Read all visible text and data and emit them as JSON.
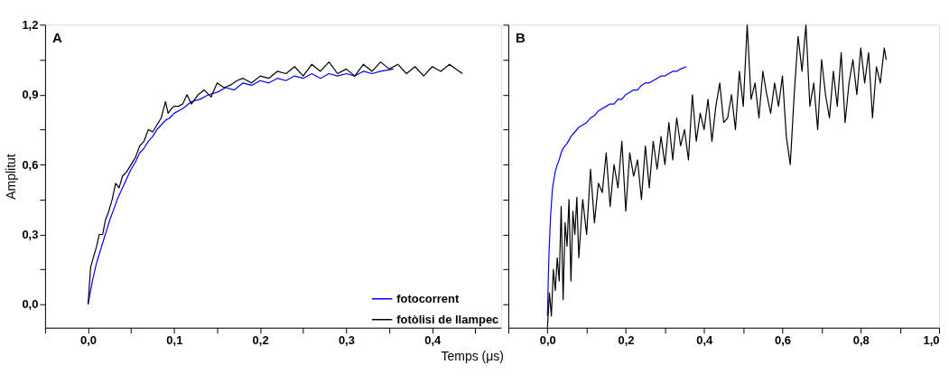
{
  "chart_data": [
    {
      "type": "line",
      "ylabel": "Amplitut",
      "xlabel": "Temps (μs)",
      "annotations": [
        "A"
      ],
      "legend": "bottom right",
      "xlim": [
        -0.05,
        0.48
      ],
      "ylim": [
        -0.1,
        1.2
      ],
      "xticks": [
        {
          "value": -0.05,
          "label": null
        },
        {
          "value": 0,
          "label": "0,0"
        },
        {
          "value": 0.05,
          "label": null
        },
        {
          "value": 0.1,
          "label": "0,1"
        },
        {
          "value": 0.15,
          "label": null
        },
        {
          "value": 0.2,
          "label": "0,2"
        },
        {
          "value": 0.25,
          "label": null
        },
        {
          "value": 0.3,
          "label": "0,3"
        },
        {
          "value": 0.35,
          "label": null
        },
        {
          "value": 0.4,
          "label": "0,4"
        },
        {
          "value": 0.45,
          "label": null
        }
      ],
      "yticks": [
        {
          "value": 0,
          "label": "0,0"
        },
        {
          "value": 0.15,
          "label": null
        },
        {
          "value": 0.3,
          "label": "0,3"
        },
        {
          "value": 0.45,
          "label": null
        },
        {
          "value": 0.6,
          "label": "0,6"
        },
        {
          "value": 0.75,
          "label": null
        },
        {
          "value": 0.9,
          "label": "0,9"
        },
        {
          "value": 1.05,
          "label": null
        },
        {
          "value": 1.2,
          "label": "1,2"
        }
      ],
      "series": [
        {
          "name": "fotocorrent",
          "color": "#0000ff",
          "x": [
            0,
            0.005,
            0.01,
            0.015,
            0.02,
            0.025,
            0.03,
            0.035,
            0.04,
            0.045,
            0.05,
            0.055,
            0.06,
            0.065,
            0.07,
            0.075,
            0.08,
            0.085,
            0.09,
            0.095,
            0.1,
            0.11,
            0.12,
            0.13,
            0.14,
            0.15,
            0.16,
            0.17,
            0.18,
            0.19,
            0.2,
            0.21,
            0.22,
            0.23,
            0.24,
            0.25,
            0.26,
            0.27,
            0.28,
            0.29,
            0.3,
            0.31,
            0.32,
            0.33,
            0.34,
            0.355
          ],
          "values": [
            0,
            0.1,
            0.18,
            0.24,
            0.3,
            0.36,
            0.41,
            0.46,
            0.5,
            0.54,
            0.58,
            0.61,
            0.65,
            0.67,
            0.7,
            0.72,
            0.75,
            0.77,
            0.79,
            0.8,
            0.82,
            0.84,
            0.87,
            0.88,
            0.9,
            0.91,
            0.93,
            0.92,
            0.95,
            0.94,
            0.96,
            0.95,
            0.97,
            0.96,
            0.98,
            0.97,
            0.99,
            0.97,
            0.99,
            0.98,
            0.99,
            0.98,
            1.0,
            0.99,
            1.0,
            1.01
          ]
        },
        {
          "name": "fotòlisi de llampec",
          "color": "#000000",
          "x": [
            0,
            0.003,
            0.006,
            0.01,
            0.013,
            0.017,
            0.02,
            0.024,
            0.028,
            0.032,
            0.036,
            0.04,
            0.045,
            0.05,
            0.055,
            0.06,
            0.065,
            0.07,
            0.075,
            0.08,
            0.085,
            0.09,
            0.093,
            0.097,
            0.1,
            0.105,
            0.11,
            0.115,
            0.12,
            0.128,
            0.135,
            0.143,
            0.15,
            0.158,
            0.165,
            0.173,
            0.18,
            0.19,
            0.2,
            0.21,
            0.22,
            0.23,
            0.24,
            0.25,
            0.26,
            0.27,
            0.28,
            0.29,
            0.3,
            0.31,
            0.32,
            0.33,
            0.34,
            0.35,
            0.36,
            0.37,
            0.38,
            0.39,
            0.4,
            0.41,
            0.42,
            0.435
          ],
          "values": [
            0,
            0.16,
            0.2,
            0.25,
            0.3,
            0.3,
            0.36,
            0.4,
            0.45,
            0.52,
            0.5,
            0.55,
            0.57,
            0.6,
            0.63,
            0.68,
            0.7,
            0.75,
            0.74,
            0.77,
            0.8,
            0.87,
            0.82,
            0.84,
            0.85,
            0.85,
            0.86,
            0.9,
            0.86,
            0.9,
            0.92,
            0.89,
            0.95,
            0.93,
            0.94,
            0.96,
            0.97,
            0.95,
            0.98,
            0.97,
            1.0,
            0.99,
            1.02,
            0.98,
            1.03,
            1.0,
            1.04,
            0.99,
            1.01,
            0.98,
            1.03,
            1.0,
            1.04,
            1.01,
            1.03,
            0.99,
            1.02,
            0.98,
            1.02,
            1.0,
            1.03,
            0.99
          ]
        }
      ]
    },
    {
      "type": "line",
      "annotations": [
        "B"
      ],
      "tick_labels": "x",
      "xlim": [
        -0.1,
        1.0
      ],
      "ylim": [
        -0.1,
        1.2
      ],
      "xticks": [
        {
          "value": -0.1,
          "label": null
        },
        {
          "value": 0,
          "label": "0,0"
        },
        {
          "value": 0.1,
          "label": null
        },
        {
          "value": 0.2,
          "label": "0,2"
        },
        {
          "value": 0.3,
          "label": null
        },
        {
          "value": 0.4,
          "label": "0,4"
        },
        {
          "value": 0.5,
          "label": null
        },
        {
          "value": 0.6,
          "label": "0,6"
        },
        {
          "value": 0.7,
          "label": null
        },
        {
          "value": 0.8,
          "label": "0,8"
        },
        {
          "value": 0.9,
          "label": null
        },
        {
          "value": 1.0,
          "label": "1,0"
        }
      ],
      "yticks": [
        {
          "value": 0,
          "label": null
        },
        {
          "value": 0.15,
          "label": null
        },
        {
          "value": 0.3,
          "label": null
        },
        {
          "value": 0.45,
          "label": null
        },
        {
          "value": 0.6,
          "label": null
        },
        {
          "value": 0.75,
          "label": null
        },
        {
          "value": 0.9,
          "label": null
        },
        {
          "value": 1.05,
          "label": null
        },
        {
          "value": 1.2,
          "label": null
        }
      ],
      "series": [
        {
          "color": "#0000ff",
          "x": [
            0,
            0.002,
            0.004,
            0.006,
            0.008,
            0.01,
            0.013,
            0.016,
            0.02,
            0.025,
            0.03,
            0.035,
            0.04,
            0.05,
            0.06,
            0.07,
            0.08,
            0.09,
            0.1,
            0.11,
            0.12,
            0.13,
            0.14,
            0.15,
            0.16,
            0.17,
            0.18,
            0.19,
            0.2,
            0.21,
            0.22,
            0.23,
            0.24,
            0.25,
            0.26,
            0.27,
            0.28,
            0.29,
            0.3,
            0.31,
            0.32,
            0.33,
            0.34,
            0.355
          ],
          "values": [
            -0.05,
            0.1,
            0.22,
            0.3,
            0.38,
            0.43,
            0.5,
            0.53,
            0.57,
            0.6,
            0.62,
            0.65,
            0.67,
            0.69,
            0.72,
            0.74,
            0.76,
            0.77,
            0.78,
            0.8,
            0.81,
            0.83,
            0.84,
            0.85,
            0.86,
            0.86,
            0.88,
            0.88,
            0.9,
            0.91,
            0.92,
            0.92,
            0.94,
            0.95,
            0.95,
            0.96,
            0.97,
            0.98,
            0.98,
            0.99,
            1.0,
            1.0,
            1.01,
            1.02
          ]
        },
        {
          "color": "#000000",
          "x": [
            0.0,
            0.005,
            0.01,
            0.015,
            0.02,
            0.025,
            0.03,
            0.035,
            0.04,
            0.045,
            0.05,
            0.055,
            0.06,
            0.065,
            0.07,
            0.075,
            0.08,
            0.09,
            0.1,
            0.11,
            0.12,
            0.13,
            0.14,
            0.15,
            0.16,
            0.17,
            0.18,
            0.19,
            0.2,
            0.21,
            0.22,
            0.23,
            0.24,
            0.25,
            0.26,
            0.27,
            0.28,
            0.29,
            0.3,
            0.31,
            0.32,
            0.33,
            0.34,
            0.35,
            0.36,
            0.37,
            0.38,
            0.39,
            0.4,
            0.41,
            0.42,
            0.43,
            0.44,
            0.45,
            0.46,
            0.47,
            0.48,
            0.49,
            0.5,
            0.51,
            0.52,
            0.53,
            0.54,
            0.55,
            0.56,
            0.57,
            0.58,
            0.59,
            0.6,
            0.61,
            0.62,
            0.63,
            0.64,
            0.65,
            0.66,
            0.67,
            0.68,
            0.69,
            0.7,
            0.71,
            0.72,
            0.73,
            0.74,
            0.75,
            0.76,
            0.77,
            0.78,
            0.79,
            0.8,
            0.81,
            0.82,
            0.83,
            0.84,
            0.85,
            0.86,
            0.865
          ],
          "values": [
            -0.1,
            0.05,
            -0.05,
            0.15,
            0.06,
            0.2,
            0.1,
            0.42,
            0.02,
            0.35,
            0.25,
            0.45,
            0.1,
            0.4,
            0.3,
            0.46,
            0.2,
            0.45,
            0.3,
            0.58,
            0.35,
            0.52,
            0.48,
            0.65,
            0.42,
            0.6,
            0.5,
            0.7,
            0.4,
            0.65,
            0.55,
            0.62,
            0.45,
            0.68,
            0.5,
            0.7,
            0.58,
            0.72,
            0.6,
            0.78,
            0.62,
            0.8,
            0.68,
            0.75,
            0.62,
            0.9,
            0.7,
            0.82,
            0.75,
            0.88,
            0.7,
            0.85,
            0.95,
            0.78,
            0.8,
            0.9,
            0.75,
            1.0,
            0.85,
            1.2,
            0.88,
            0.95,
            0.8,
            1.0,
            0.9,
            0.82,
            0.95,
            0.85,
            0.98,
            0.72,
            0.6,
            0.9,
            1.15,
            1.0,
            1.2,
            0.85,
            0.95,
            0.75,
            1.05,
            0.9,
            0.8,
            1.0,
            0.85,
            1.08,
            0.78,
            0.95,
            1.05,
            0.9,
            1.1,
            0.95,
            1.08,
            0.8,
            1.02,
            0.95,
            1.1,
            1.05
          ]
        }
      ]
    }
  ]
}
